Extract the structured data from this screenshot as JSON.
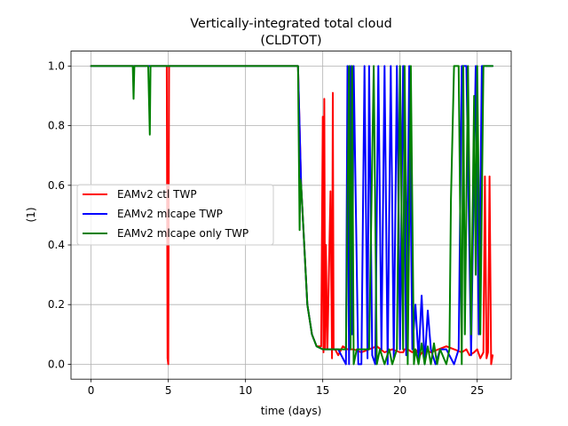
{
  "chart_data": {
    "type": "line",
    "title": "Vertically-integrated total cloud",
    "subtitle": "(CLDTOT)",
    "xlabel": "time (days)",
    "ylabel": "(1)",
    "xlim": [
      -1.3,
      27.2
    ],
    "ylim": [
      -0.05,
      1.05
    ],
    "xticks": [
      0,
      5,
      10,
      15,
      20,
      25
    ],
    "yticks": [
      0.0,
      0.2,
      0.4,
      0.6,
      0.8,
      1.0
    ],
    "xtick_labels": [
      "0",
      "5",
      "10",
      "15",
      "20",
      "25"
    ],
    "ytick_labels": [
      "0.0",
      "0.2",
      "0.4",
      "0.6",
      "0.8",
      "1.0"
    ],
    "grid": true,
    "legend_position": "center-left",
    "series": [
      {
        "name": "EAMv2 ctl TWP",
        "color": "#ff0000",
        "x": [
          0,
          4.9,
          4.95,
          5.0,
          5.05,
          5.1,
          8,
          13.4,
          13.6,
          13.8,
          14.0,
          14.3,
          14.6,
          14.9,
          15.0,
          15.05,
          15.1,
          15.15,
          15.2,
          15.3,
          15.5,
          15.6,
          15.65,
          15.7,
          15.8,
          16.0,
          16.3,
          16.6,
          17.0,
          17.5,
          18.0,
          18.5,
          19.0,
          19.5,
          20.0,
          20.2,
          20.3,
          20.5,
          20.8,
          21.0,
          21.3,
          21.6,
          22.0,
          22.5,
          23.0,
          23.5,
          24.0,
          24.3,
          24.5,
          24.8,
          25.0,
          25.2,
          25.4,
          25.5,
          25.6,
          25.7,
          25.8,
          25.9,
          26.0
        ],
        "y": [
          1.0,
          1.0,
          0.02,
          0.0,
          1.0,
          1.0,
          1.0,
          1.0,
          0.6,
          0.4,
          0.2,
          0.1,
          0.06,
          0.06,
          0.83,
          0.04,
          0.89,
          0.05,
          0.4,
          0.05,
          0.58,
          0.02,
          0.91,
          0.05,
          0.05,
          0.03,
          0.06,
          0.05,
          0.05,
          0.04,
          0.05,
          0.06,
          0.04,
          0.05,
          0.04,
          0.04,
          0.05,
          0.05,
          0.04,
          0.05,
          0.03,
          0.05,
          0.04,
          0.05,
          0.06,
          0.05,
          0.04,
          0.05,
          0.03,
          0.04,
          0.05,
          0.02,
          0.04,
          0.63,
          0.02,
          0.04,
          0.63,
          0.0,
          0.03
        ]
      },
      {
        "name": "EAMv2 mlcape TWP",
        "color": "#0000ff",
        "x": [
          0,
          13.4,
          13.6,
          13.8,
          14.0,
          14.3,
          14.6,
          15.0,
          15.5,
          16.0,
          16.5,
          16.6,
          16.7,
          16.8,
          16.9,
          17.0,
          17.3,
          17.5,
          17.7,
          17.9,
          18.0,
          18.2,
          18.4,
          18.6,
          18.8,
          19.0,
          19.2,
          19.4,
          19.6,
          19.8,
          20.0,
          20.2,
          20.4,
          20.6,
          20.8,
          21.0,
          21.2,
          21.4,
          21.6,
          21.8,
          22.0,
          22.3,
          22.6,
          23.0,
          23.5,
          23.8,
          24.0,
          24.3,
          24.6,
          24.9,
          25.1,
          25.3,
          25.5,
          25.7,
          25.9,
          26.0
        ],
        "y": [
          1.0,
          1.0,
          0.6,
          0.4,
          0.2,
          0.1,
          0.06,
          0.05,
          0.05,
          0.05,
          0.0,
          1.0,
          0.0,
          1.0,
          0.1,
          1.0,
          0.0,
          0.0,
          1.0,
          0.02,
          1.0,
          0.03,
          0.0,
          1.0,
          0.05,
          1.0,
          0.0,
          1.0,
          0.02,
          1.0,
          0.05,
          1.0,
          0.03,
          1.0,
          0.05,
          0.2,
          0.02,
          0.23,
          0.0,
          0.18,
          0.05,
          0.0,
          0.05,
          0.05,
          0.0,
          0.05,
          1.0,
          1.0,
          0.03,
          1.0,
          0.1,
          1.0,
          1.0,
          1.0,
          1.0,
          1.0
        ]
      },
      {
        "name": "EAMv2 mlcape only TWP",
        "color": "#008000",
        "x": [
          0,
          2.7,
          2.75,
          2.8,
          3.7,
          3.8,
          3.85,
          13.4,
          13.5,
          13.55,
          13.6,
          13.7,
          13.8,
          14.0,
          14.3,
          14.6,
          15.0,
          15.5,
          16.0,
          16.5,
          16.7,
          16.8,
          16.9,
          17.0,
          17.2,
          17.5,
          18.0,
          18.3,
          18.5,
          18.7,
          19.0,
          19.3,
          19.5,
          19.8,
          20.0,
          20.2,
          20.3,
          20.5,
          20.7,
          20.9,
          21.0,
          21.2,
          21.4,
          21.6,
          21.8,
          22.0,
          22.2,
          22.4,
          22.6,
          23.0,
          23.2,
          23.3,
          23.5,
          23.8,
          24.0,
          24.1,
          24.2,
          24.4,
          24.6,
          24.8,
          24.9,
          25.0,
          25.2,
          25.4,
          25.6,
          25.8,
          26.0
        ],
        "y": [
          1.0,
          1.0,
          0.89,
          1.0,
          1.0,
          0.77,
          1.0,
          1.0,
          0.45,
          0.62,
          0.6,
          0.5,
          0.4,
          0.2,
          0.1,
          0.06,
          0.05,
          0.05,
          0.05,
          0.05,
          1.0,
          0.05,
          1.0,
          0.0,
          0.05,
          0.05,
          0.05,
          1.0,
          0.0,
          0.05,
          0.0,
          0.05,
          0.0,
          0.05,
          1.0,
          0.05,
          1.0,
          0.0,
          1.0,
          0.0,
          0.05,
          0.0,
          0.07,
          0.0,
          0.06,
          0.0,
          0.07,
          0.0,
          0.05,
          0.0,
          0.05,
          0.55,
          1.0,
          1.0,
          0.0,
          1.0,
          0.1,
          1.0,
          0.1,
          0.9,
          0.3,
          1.0,
          0.1,
          1.0,
          1.0,
          1.0,
          1.0
        ]
      }
    ]
  }
}
